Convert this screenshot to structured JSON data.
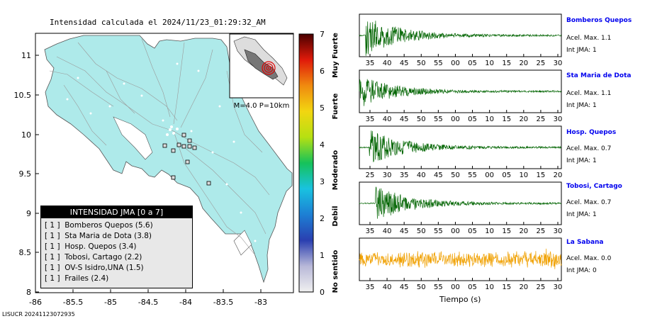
{
  "map": {
    "title": "Intensidad calculada el 2024/11/23_01:29:32_AM",
    "lat_ticks": [
      "11",
      "10.5",
      "10",
      "9.5",
      "9",
      "8.5",
      "8"
    ],
    "lon_ticks": [
      "-86",
      "-85.5",
      "-85",
      "-84.5",
      "-84",
      "-83.5",
      "-83"
    ],
    "inset_label": "M=4.0 P=10km",
    "land_color": "#aeeaea",
    "footer": "LISUCR 20241123072935"
  },
  "legend": {
    "title": "INTENSIDAD JMA [0 a 7]",
    "items": [
      "[ 1 ]  Bomberos Quepos (5.6)",
      "[ 1 ]  Sta Maria de Dota (3.8)",
      "[ 1 ]  Hosp. Quepos (3.4)",
      "[ 1 ]  Tobosi, Cartago (2.2)",
      "[ 1 ]  OV-S Isidro,UNA (1.5)",
      "[ 1 ]  Frailes (2.4)"
    ]
  },
  "colorbar": {
    "ticks": [
      "7",
      "6",
      "5",
      "4",
      "3",
      "2",
      "1",
      "0"
    ],
    "labels": [
      "Muy Fuerte",
      "Fuerte",
      "Moderado",
      "Debil",
      "No sentido"
    ]
  },
  "traces": {
    "xlabel": "Tiempo (s)",
    "stations": [
      {
        "name": "Bomberos Quepos",
        "acel": "Acel. Max. 1.1",
        "int": "Int JMA: 1",
        "color": "#006400",
        "ticks": [
          "35",
          "40",
          "45",
          "50",
          "55",
          "00",
          "05",
          "10",
          "15",
          "20",
          "25",
          "30"
        ],
        "seed": 1,
        "onset": 0.03,
        "amp": 1.0
      },
      {
        "name": "Sta Maria de Dota",
        "acel": "Acel. Max. 1.1",
        "int": "Int JMA: 1",
        "color": "#006400",
        "ticks": [
          "35",
          "40",
          "45",
          "50",
          "55",
          "00",
          "05",
          "10",
          "15",
          "20",
          "25",
          "30"
        ],
        "seed": 2,
        "onset": 0.0,
        "amp": 0.8
      },
      {
        "name": "Hosp. Quepos",
        "acel": "Acel. Max. 0.7",
        "int": "Int JMA: 1",
        "color": "#006400",
        "ticks": [
          "25",
          "30",
          "35",
          "40",
          "45",
          "50",
          "55",
          "00",
          "05",
          "10",
          "15",
          "20"
        ],
        "seed": 3,
        "onset": 0.05,
        "amp": 0.9
      },
      {
        "name": "Tobosi, Cartago",
        "acel": "Acel. Max. 0.7",
        "int": "Int JMA: 1",
        "color": "#006400",
        "ticks": [
          "35",
          "40",
          "45",
          "50",
          "55",
          "00",
          "05",
          "10",
          "15",
          "20",
          "25",
          "30"
        ],
        "seed": 4,
        "onset": 0.08,
        "amp": 0.9
      },
      {
        "name": "La Sabana",
        "acel": "Acel. Max. 0.0",
        "int": "Int JMA: 0",
        "color": "#f0a000",
        "ticks": [
          "35",
          "40",
          "45",
          "50",
          "55",
          "00",
          "05",
          "10",
          "15",
          "20",
          "25",
          "30"
        ],
        "seed": 5,
        "onset": 0.0,
        "amp": 0.45
      }
    ]
  }
}
